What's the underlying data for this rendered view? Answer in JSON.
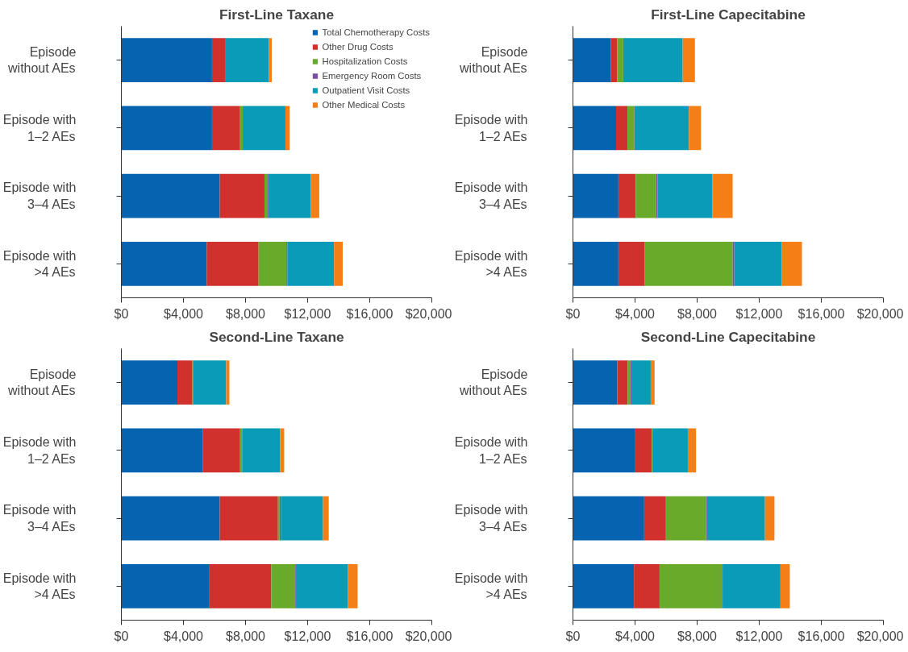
{
  "chart_data": [
    {
      "type": "bar",
      "orientation": "horizontal",
      "stacked": true,
      "title": "First-Line Taxane",
      "legend": "top right",
      "grid": false,
      "categories": [
        "Episode\nwithout AEs",
        "Episode with\n1–2 AEs",
        "Episode with\n3–4 AEs",
        "Episode with\n>4 AEs"
      ],
      "xlim": [
        0,
        20000
      ],
      "xticks": [
        {
          "value": 0,
          "label": "$0"
        },
        {
          "value": 4000,
          "label": "$4,000"
        },
        {
          "value": 8000,
          "label": "$8,000"
        },
        {
          "value": 12000,
          "label": "$12,000"
        },
        {
          "value": 16000,
          "label": "$16,000"
        },
        {
          "value": 20000,
          "label": "$20,000"
        }
      ],
      "series": [
        {
          "name": "Total Chemotherapy Costs",
          "color": "#0563b0",
          "values": [
            5840,
            5840,
            6340,
            5500
          ]
        },
        {
          "name": "Other Drug Costs",
          "color": "#d0312d",
          "values": [
            880,
            1810,
            2880,
            3340
          ]
        },
        {
          "name": "Hospitalization Costs",
          "color": "#6aaa2a",
          "values": [
            0,
            170,
            170,
            1790
          ]
        },
        {
          "name": "Emergency Room Costs",
          "color": "#7a4fa0",
          "values": [
            0,
            0,
            80,
            60
          ]
        },
        {
          "name": "Outpatient Visit Costs",
          "color": "#0a9bb8",
          "values": [
            2780,
            2750,
            2740,
            3010
          ]
        },
        {
          "name": "Other Medical Costs",
          "color": "#f57f17",
          "values": [
            190,
            270,
            540,
            560
          ]
        }
      ]
    },
    {
      "type": "bar",
      "orientation": "horizontal",
      "stacked": true,
      "title": "First-Line Capecitabine",
      "grid": false,
      "categories": [
        "Episode\nwithout AEs",
        "Episode with\n1–2 AEs",
        "Episode with\n3–4 AEs",
        "Episode with\n>4 AEs"
      ],
      "xlim": [
        0,
        20000
      ],
      "xticks": [
        {
          "value": 0,
          "label": "$0"
        },
        {
          "value": 4000,
          "label": "$4,000"
        },
        {
          "value": 8000,
          "label": "$8,000"
        },
        {
          "value": 12000,
          "label": "$12,000"
        },
        {
          "value": 16000,
          "label": "$16,000"
        },
        {
          "value": 20000,
          "label": "$20,000"
        }
      ],
      "series": [
        {
          "color": "#0563b0",
          "values": [
            2450,
            2780,
            2930,
            2930
          ]
        },
        {
          "color": "#d0312d",
          "values": [
            400,
            730,
            1110,
            1700
          ]
        },
        {
          "color": "#6aaa2a",
          "values": [
            390,
            450,
            1320,
            5660
          ]
        },
        {
          "color": "#7a4fa0",
          "values": [
            0,
            60,
            100,
            110
          ]
        },
        {
          "color": "#0a9bb8",
          "values": [
            3830,
            3450,
            3530,
            3040
          ]
        },
        {
          "color": "#f57f17",
          "values": [
            790,
            780,
            1300,
            1310
          ]
        }
      ]
    },
    {
      "type": "bar",
      "orientation": "horizontal",
      "stacked": true,
      "title": "Second-Line Taxane",
      "grid": false,
      "categories": [
        "Episode\nwithout AEs",
        "Episode with\n1–2 AEs",
        "Episode with\n3–4 AEs",
        "Episode with\n>4 AEs"
      ],
      "xlim": [
        0,
        20000
      ],
      "xticks": [
        {
          "value": 0,
          "label": "$0"
        },
        {
          "value": 4000,
          "label": "$4,000"
        },
        {
          "value": 8000,
          "label": "$8,000"
        },
        {
          "value": 12000,
          "label": "$12,000"
        },
        {
          "value": 16000,
          "label": "$16,000"
        },
        {
          "value": 20000,
          "label": "$20,000"
        }
      ],
      "series": [
        {
          "color": "#0563b0",
          "values": [
            3610,
            5230,
            6340,
            5640
          ]
        },
        {
          "color": "#d0312d",
          "values": [
            970,
            2420,
            3750,
            4020
          ]
        },
        {
          "color": "#6aaa2a",
          "values": [
            70,
            130,
            110,
            1540
          ]
        },
        {
          "color": "#7a4fa0",
          "values": [
            0,
            0,
            70,
            40
          ]
        },
        {
          "color": "#0a9bb8",
          "values": [
            2100,
            2450,
            2720,
            3360
          ]
        },
        {
          "color": "#f57f17",
          "values": [
            210,
            260,
            370,
            620
          ]
        }
      ]
    },
    {
      "type": "bar",
      "orientation": "horizontal",
      "stacked": true,
      "title": "Second-Line Capecitabine",
      "grid": false,
      "categories": [
        "Episode\nwithout AEs",
        "Episode with\n1–2 AEs",
        "Episode with\n3–4 AEs",
        "Episode with\n>4 AEs"
      ],
      "xlim": [
        0,
        20000
      ],
      "xticks": [
        {
          "value": 0,
          "label": "$0"
        },
        {
          "value": 4000,
          "label": "$4,000"
        },
        {
          "value": 8000,
          "label": "$8,000"
        },
        {
          "value": 12000,
          "label": "$12,000"
        },
        {
          "value": 16000,
          "label": "$16,000"
        },
        {
          "value": 20000,
          "label": "$20,000"
        }
      ],
      "series": [
        {
          "color": "#0563b0",
          "values": [
            2860,
            4020,
            4590,
            3930
          ]
        },
        {
          "color": "#d0312d",
          "values": [
            660,
            1060,
            1400,
            1650
          ]
        },
        {
          "color": "#6aaa2a",
          "values": [
            180,
            40,
            2600,
            4020
          ]
        },
        {
          "color": "#7a4fa0",
          "values": [
            70,
            0,
            50,
            40
          ]
        },
        {
          "color": "#0a9bb8",
          "values": [
            1240,
            2280,
            3730,
            3730
          ]
        },
        {
          "color": "#f57f17",
          "values": [
            250,
            530,
            610,
            600
          ]
        }
      ]
    }
  ]
}
